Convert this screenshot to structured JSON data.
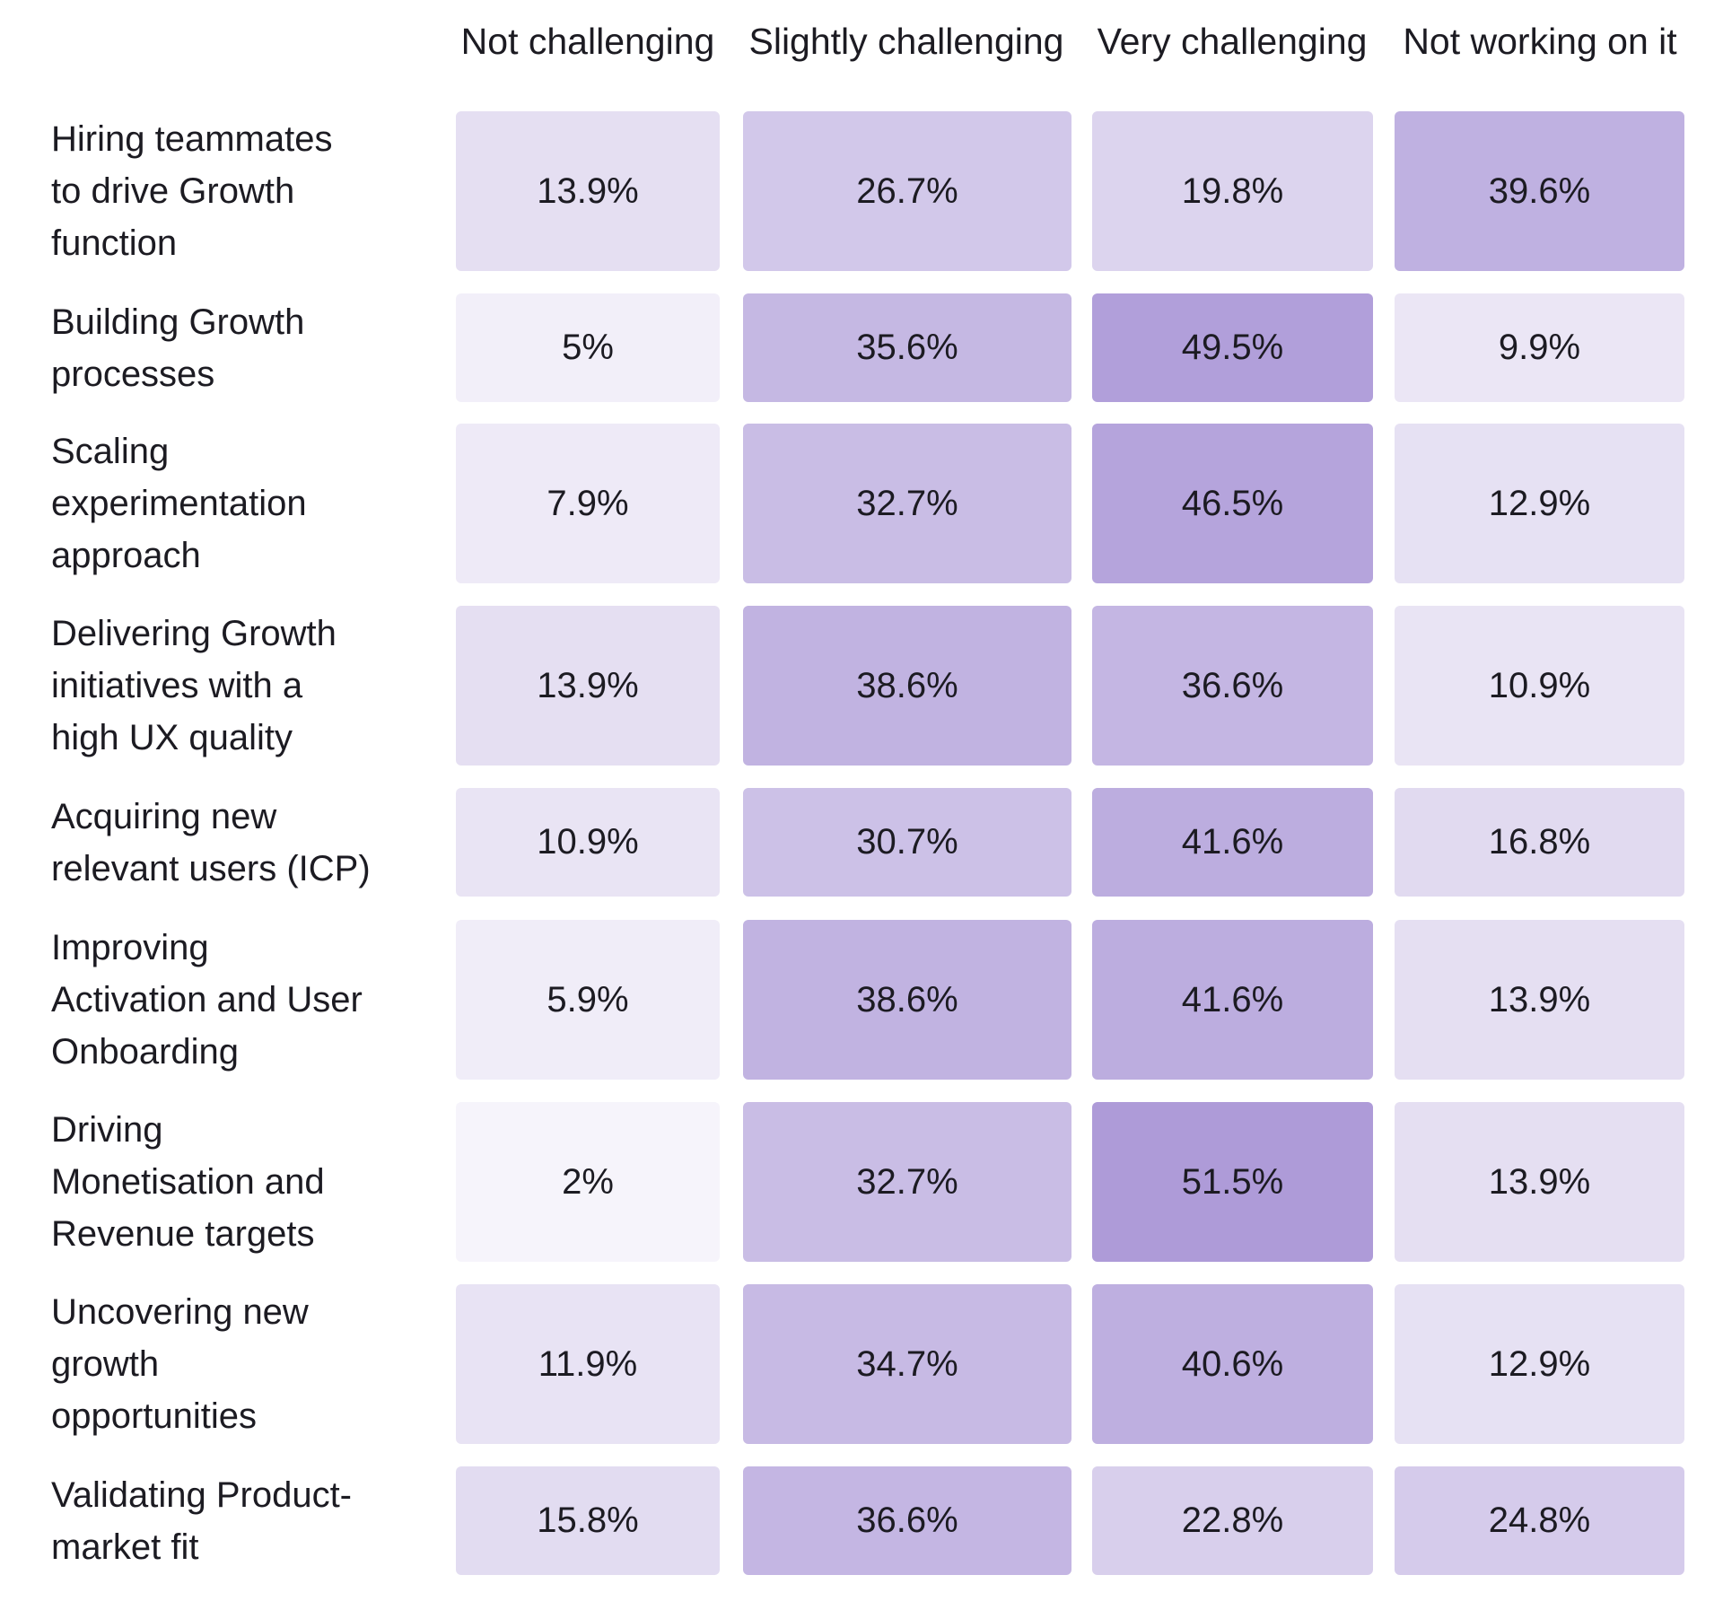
{
  "chart_data": {
    "type": "heatmap",
    "title": "",
    "columns": [
      "Not challenging",
      "Slightly challenging",
      "Very challenging",
      "Not working on it"
    ],
    "rows": [
      {
        "label": "Hiring teammates to drive Growth function",
        "values": [
          13.9,
          26.7,
          19.8,
          39.6
        ],
        "display": [
          "13.9%",
          "26.7%",
          "19.8%",
          "39.6%"
        ]
      },
      {
        "label": "Building Growth processes",
        "values": [
          5,
          35.6,
          49.5,
          9.9
        ],
        "display": [
          "5%",
          "35.6%",
          "49.5%",
          "9.9%"
        ]
      },
      {
        "label": "Scaling experimentation approach",
        "values": [
          7.9,
          32.7,
          46.5,
          12.9
        ],
        "display": [
          "7.9%",
          "32.7%",
          "46.5%",
          "12.9%"
        ]
      },
      {
        "label": "Delivering Growth initiatives with a high UX quality",
        "values": [
          13.9,
          38.6,
          36.6,
          10.9
        ],
        "display": [
          "13.9%",
          "38.6%",
          "36.6%",
          "10.9%"
        ]
      },
      {
        "label": "Acquiring new relevant users (ICP)",
        "values": [
          10.9,
          30.7,
          41.6,
          16.8
        ],
        "display": [
          "10.9%",
          "30.7%",
          "41.6%",
          "16.8%"
        ]
      },
      {
        "label": "Improving Activation and User Onboarding",
        "values": [
          5.9,
          38.6,
          41.6,
          13.9
        ],
        "display": [
          "5.9%",
          "38.6%",
          "41.6%",
          "13.9%"
        ]
      },
      {
        "label": "Driving Monetisation and Revenue targets",
        "values": [
          2,
          32.7,
          51.5,
          13.9
        ],
        "display": [
          "2%",
          "32.7%",
          "51.5%",
          "13.9%"
        ]
      },
      {
        "label": "Uncovering new growth opportunities",
        "values": [
          11.9,
          34.7,
          40.6,
          12.9
        ],
        "display": [
          "11.9%",
          "34.7%",
          "40.6%",
          "12.9%"
        ]
      },
      {
        "label": "Validating Product-market fit",
        "values": [
          15.8,
          36.6,
          22.8,
          24.8
        ],
        "display": [
          "15.8%",
          "36.6%",
          "22.8%",
          "24.8%"
        ]
      }
    ],
    "color_scale": {
      "low": "#f9f8fc",
      "high": "#a995d6",
      "min": 0,
      "max": 55
    },
    "legend": "none",
    "grid": false
  }
}
